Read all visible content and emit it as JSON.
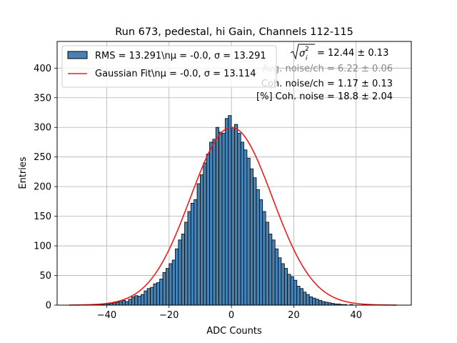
{
  "chart_data": {
    "type": "histogram",
    "title": "Run 673, pedestal, hi Gain, Channels 112-115",
    "xlabel": "ADC Counts",
    "ylabel": "Entries",
    "xlim": [
      -55.9,
      57.7
    ],
    "ylim": [
      0,
      445
    ],
    "xticks": [
      -40,
      -20,
      0,
      20,
      40
    ],
    "yticks": [
      0,
      50,
      100,
      150,
      200,
      250,
      300,
      350,
      400
    ],
    "xtick_labels": [
      "−40",
      "−20",
      "0",
      "20",
      "40"
    ],
    "ytick_labels": [
      "0",
      "50",
      "100",
      "150",
      "200",
      "250",
      "300",
      "350",
      "400"
    ],
    "grid": true,
    "legend_position": "upper-left",
    "bar_color": "#4682b4",
    "fit_color": "#ee1c1c",
    "bins": {
      "start": -51,
      "width": 1,
      "values": [
        0,
        0,
        0,
        0,
        0,
        0,
        0,
        0,
        1,
        1,
        2,
        2,
        3,
        4,
        5,
        6,
        8,
        6,
        10,
        14,
        16,
        15,
        18,
        24,
        28,
        30,
        36,
        38,
        44,
        55,
        62,
        70,
        76,
        95,
        110,
        120,
        140,
        158,
        172,
        178,
        205,
        220,
        240,
        255,
        275,
        280,
        300,
        292,
        290,
        315,
        320,
        300,
        305,
        290,
        275,
        262,
        248,
        230,
        215,
        195,
        178,
        158,
        140,
        120,
        110,
        95,
        80,
        70,
        62,
        52,
        48,
        42,
        32,
        28,
        22,
        18,
        14,
        12,
        10,
        8,
        6,
        5,
        4,
        3,
        2,
        2,
        1,
        1,
        0,
        1,
        0,
        0,
        0,
        0,
        0,
        0,
        0,
        0,
        0,
        0,
        0,
        0,
        0,
        0,
        0
      ]
    },
    "fit": {
      "mu": 0.0,
      "sigma": 13.114,
      "amplitude": 300,
      "x_range": [
        -52,
        53
      ]
    },
    "legend": [
      {
        "kind": "bar",
        "label": "RMS = 13.291\\nμ = -0.0, σ = 13.291"
      },
      {
        "kind": "line",
        "label": "Gaussian Fit\\nμ = -0.0, σ = 13.114"
      }
    ],
    "annotations": {
      "sigma_i": "= 12.44 ± 0.13",
      "avg_noise": "Avg. noise/ch = 6.22 ± 0.06",
      "coh_noise": "Coh. noise/ch = 1.17 ± 0.13",
      "pct_coh_noise": "[%] Coh. noise = 18.8 ± 2.04"
    }
  }
}
